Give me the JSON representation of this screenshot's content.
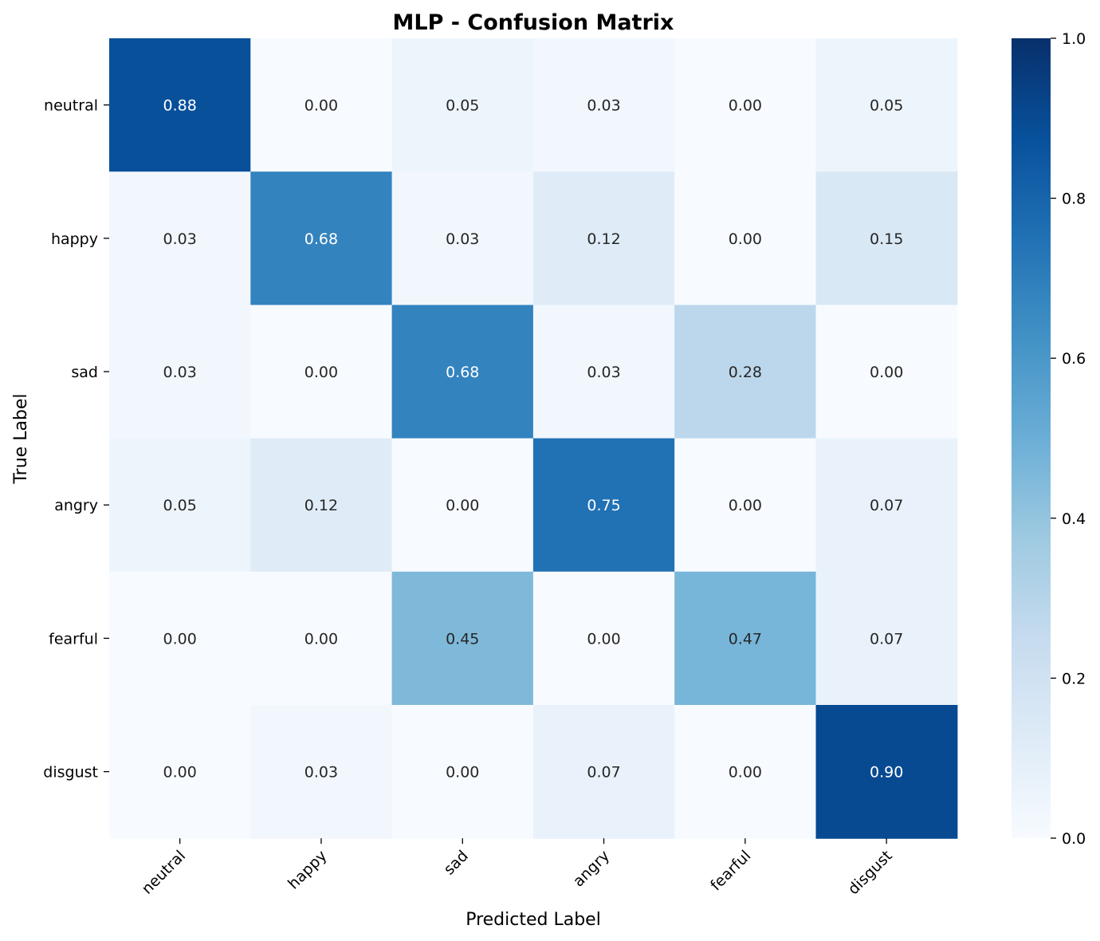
{
  "chart_data": {
    "type": "heatmap",
    "title": "MLP - Confusion Matrix",
    "xlabel": "Predicted Label",
    "ylabel": "True Label",
    "x_categories": [
      "neutral",
      "happy",
      "sad",
      "angry",
      "fearful",
      "disgust"
    ],
    "y_categories": [
      "neutral",
      "happy",
      "sad",
      "angry",
      "fearful",
      "disgust"
    ],
    "values": [
      [
        0.88,
        0.0,
        0.05,
        0.03,
        0.0,
        0.05
      ],
      [
        0.03,
        0.68,
        0.03,
        0.12,
        0.0,
        0.15
      ],
      [
        0.03,
        0.0,
        0.68,
        0.03,
        0.28,
        0.0
      ],
      [
        0.05,
        0.12,
        0.0,
        0.75,
        0.0,
        0.07
      ],
      [
        0.0,
        0.0,
        0.45,
        0.0,
        0.47,
        0.07
      ],
      [
        0.0,
        0.03,
        0.0,
        0.07,
        0.0,
        0.9
      ]
    ],
    "cell_labels": [
      [
        "0.88",
        "0.00",
        "0.05",
        "0.03",
        "0.00",
        "0.05"
      ],
      [
        "0.03",
        "0.68",
        "0.03",
        "0.12",
        "0.00",
        "0.15"
      ],
      [
        "0.03",
        "0.00",
        "0.68",
        "0.03",
        "0.28",
        "0.00"
      ],
      [
        "0.05",
        "0.12",
        "0.00",
        "0.75",
        "0.00",
        "0.07"
      ],
      [
        "0.00",
        "0.00",
        "0.45",
        "0.00",
        "0.47",
        "0.07"
      ],
      [
        "0.00",
        "0.03",
        "0.00",
        "0.07",
        "0.00",
        "0.90"
      ]
    ],
    "colormap": "Blues",
    "colorbar": {
      "range": [
        0,
        1
      ],
      "ticks": [
        0.0,
        0.2,
        0.4,
        0.6,
        0.8,
        1.0
      ],
      "tick_labels": [
        "0.0",
        "0.2",
        "0.4",
        "0.6",
        "0.8",
        "1.0"
      ]
    },
    "grid": false,
    "colors": {
      "low": "#f7fbff",
      "high": "#08306b",
      "text_dark": "#262626",
      "text_light": "#ffffff"
    }
  }
}
